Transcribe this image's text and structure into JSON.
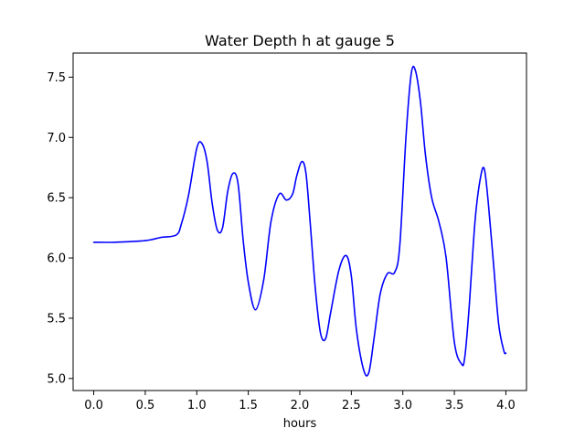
{
  "chart_data": {
    "type": "line",
    "title": "Water Depth h at gauge 5",
    "xlabel": "hours",
    "ylabel": "",
    "xlim": [
      -0.2,
      4.2
    ],
    "ylim": [
      4.9,
      7.7
    ],
    "xticks": [
      0.0,
      0.5,
      1.0,
      1.5,
      2.0,
      2.5,
      3.0,
      3.5,
      4.0
    ],
    "xtick_labels": [
      "0.0",
      "0.5",
      "1.0",
      "1.5",
      "2.0",
      "2.5",
      "3.0",
      "3.5",
      "4.0"
    ],
    "yticks": [
      5.0,
      5.5,
      6.0,
      6.5,
      7.0,
      7.5
    ],
    "ytick_labels": [
      "5.0",
      "5.5",
      "6.0",
      "6.5",
      "7.0",
      "7.5"
    ],
    "grid": false,
    "series": [
      {
        "color": "#0000ff",
        "x": [
          0.0,
          0.2,
          0.45,
          0.55,
          0.65,
          0.8,
          0.85,
          0.92,
          1.0,
          1.05,
          1.1,
          1.15,
          1.2,
          1.25,
          1.3,
          1.35,
          1.4,
          1.45,
          1.5,
          1.57,
          1.65,
          1.72,
          1.8,
          1.87,
          1.93,
          1.97,
          2.02,
          2.06,
          2.1,
          2.15,
          2.2,
          2.25,
          2.3,
          2.38,
          2.45,
          2.5,
          2.55,
          2.62,
          2.67,
          2.72,
          2.78,
          2.85,
          2.92,
          2.97,
          3.03,
          3.08,
          3.12,
          3.17,
          3.22,
          3.28,
          3.35,
          3.42,
          3.5,
          3.57,
          3.6,
          3.64,
          3.7,
          3.75,
          3.79,
          3.83,
          3.88,
          3.93,
          3.98,
          4.0
        ],
        "y": [
          6.13,
          6.13,
          6.14,
          6.15,
          6.17,
          6.19,
          6.28,
          6.52,
          6.91,
          6.95,
          6.8,
          6.45,
          6.23,
          6.25,
          6.55,
          6.7,
          6.62,
          6.15,
          5.8,
          5.57,
          5.82,
          6.3,
          6.53,
          6.48,
          6.53,
          6.68,
          6.8,
          6.7,
          6.3,
          5.75,
          5.38,
          5.33,
          5.55,
          5.9,
          6.02,
          5.85,
          5.4,
          5.07,
          5.05,
          5.33,
          5.7,
          5.87,
          5.88,
          6.1,
          7.0,
          7.52,
          7.56,
          7.3,
          6.85,
          6.5,
          6.3,
          6.0,
          5.3,
          5.12,
          5.17,
          5.55,
          6.3,
          6.65,
          6.74,
          6.45,
          5.95,
          5.45,
          5.23,
          5.21
        ]
      }
    ]
  }
}
